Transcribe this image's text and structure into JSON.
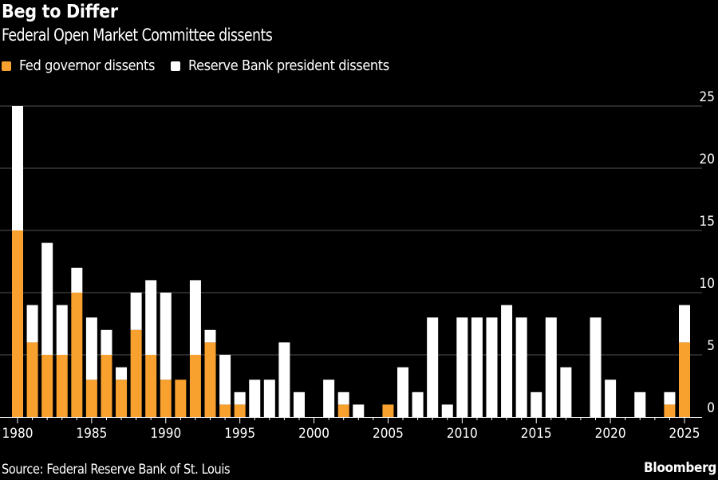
{
  "header": {
    "title": "Beg to Differ",
    "subtitle": "Federal Open Market Committee dissents"
  },
  "legend": {
    "items": [
      {
        "label": "Fed governor dissents",
        "color": "#F9A12E"
      },
      {
        "label": "Reserve Bank president dissents",
        "color": "#FFFFFF"
      }
    ]
  },
  "footer": {
    "source": "Source: Federal Reserve Bank of St. Louis",
    "brand": "Bloomberg"
  },
  "chart_data": {
    "type": "bar",
    "stacked": true,
    "title": "Beg to Differ",
    "subtitle": "Federal Open Market Committee dissents",
    "xlabel": "",
    "ylabel": "",
    "ylim": [
      0,
      25
    ],
    "yticks": [
      0,
      5,
      10,
      15,
      20,
      25
    ],
    "y_axis_side": "right",
    "grid": true,
    "legend_position": "top-left",
    "x": [
      1980,
      1981,
      1982,
      1983,
      1984,
      1985,
      1986,
      1987,
      1988,
      1989,
      1990,
      1991,
      1992,
      1993,
      1994,
      1995,
      1996,
      1997,
      1998,
      1999,
      2000,
      2001,
      2002,
      2003,
      2004,
      2005,
      2006,
      2007,
      2008,
      2009,
      2010,
      2011,
      2012,
      2013,
      2014,
      2015,
      2016,
      2017,
      2018,
      2019,
      2020,
      2021,
      2022,
      2023,
      2024,
      2025
    ],
    "xticks": [
      "1980",
      "1985",
      "1990",
      "1995",
      "2000",
      "2005",
      "2010",
      "2015",
      "2020",
      "2025"
    ],
    "series": [
      {
        "name": "Fed governor dissents",
        "color": "#F9A12E",
        "values": [
          15,
          6,
          5,
          5,
          10,
          3,
          5,
          3,
          7,
          5,
          3,
          3,
          5,
          6,
          1,
          1,
          0,
          0,
          0,
          0,
          0,
          0,
          1,
          0,
          0,
          1,
          0,
          0,
          0,
          0,
          0,
          0,
          0,
          0,
          0,
          0,
          0,
          0,
          0,
          0,
          0,
          0,
          0,
          0,
          1,
          6
        ]
      },
      {
        "name": "Reserve Bank president dissents",
        "color": "#FFFFFF",
        "values": [
          10,
          3,
          9,
          4,
          2,
          5,
          2,
          1,
          3,
          6,
          7,
          0,
          6,
          1,
          4,
          1,
          3,
          3,
          6,
          2,
          0,
          3,
          1,
          1,
          0,
          0,
          4,
          2,
          8,
          1,
          8,
          8,
          8,
          9,
          8,
          2,
          8,
          4,
          0,
          8,
          3,
          0,
          2,
          0,
          1,
          3
        ]
      }
    ]
  }
}
